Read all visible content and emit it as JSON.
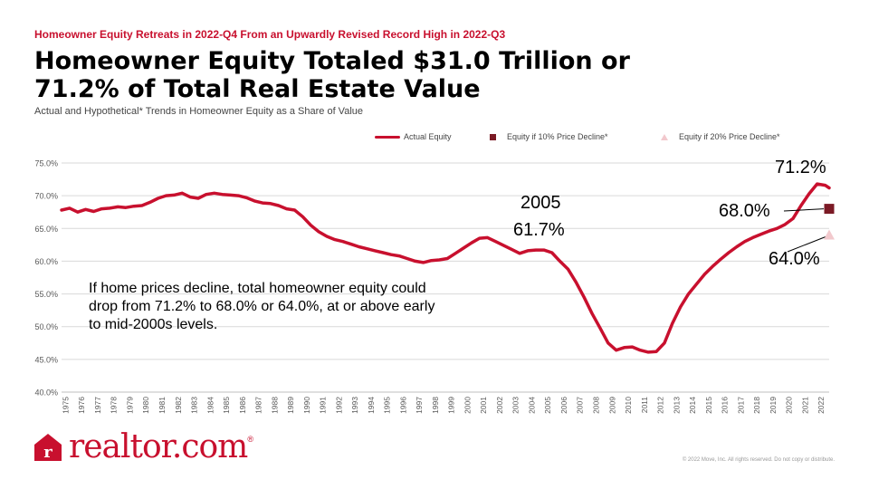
{
  "header": {
    "kicker": "Homeowner Equity  Retreats in 2022-Q4 From  an Upwardly Revised  Record High  in  2022-Q3",
    "title": "Homeowner Equity Totaled $31.0 Trillion or 71.2% of Total Real Estate Value",
    "subtitle": "Actual and Hypothetical* Trends in Homeowner Equity as a Share of Value"
  },
  "legend": {
    "actual": "Actual Equity",
    "decline10": "Equity if 10% Price Decline*",
    "decline20": "Equity if 20% Price Decline*"
  },
  "annotations": {
    "peak_2005_year": "2005",
    "peak_2005_value": "61.7%",
    "latest": "71.2%",
    "decline10": "68.0%",
    "decline20": "64.0%"
  },
  "note": "If home prices decline, total homeowner equity could drop from 71.2% to 68.0% or 64.0%, at or above early to mid-2000s levels.",
  "footer": {
    "logo_text": "realtor.com",
    "logo_mark": "r",
    "logo_registered": "®",
    "copyright": "© 2022 Move, Inc. All rights reserved. Do not copy or distribute."
  },
  "colors": {
    "actual": "#c8102e",
    "decline10": "#7b1a25",
    "decline20": "#f2c9cd",
    "grid": "#d9d9d9",
    "axis_text": "#595959"
  },
  "chart_data": {
    "type": "line",
    "ylim": [
      40,
      75
    ],
    "yticks": [
      "40.0%",
      "45.0%",
      "50.0%",
      "55.0%",
      "60.0%",
      "65.0%",
      "70.0%",
      "75.0%"
    ],
    "xrange": [
      1975,
      2022.75
    ],
    "xticks": [
      "1975",
      "1976",
      "1977",
      "1978",
      "1979",
      "1980",
      "1981",
      "1982",
      "1983",
      "1984",
      "1985",
      "1986",
      "1987",
      "1988",
      "1989",
      "1990",
      "1991",
      "1992",
      "1993",
      "1994",
      "1995",
      "1996",
      "1997",
      "1998",
      "1999",
      "2000",
      "2001",
      "2002",
      "2003",
      "2004",
      "2005",
      "2006",
      "2007",
      "2008",
      "2009",
      "2010",
      "2011",
      "2012",
      "2013",
      "2014",
      "2015",
      "2016",
      "2017",
      "2018",
      "2019",
      "2020",
      "2021",
      "2022"
    ],
    "grid": "horizontal",
    "legend_position": "top-right",
    "series": [
      {
        "name": "Actual Equity",
        "x": [
          1975,
          1975.5,
          1976,
          1976.5,
          1977,
          1977.5,
          1978,
          1978.5,
          1979,
          1979.5,
          1980,
          1980.5,
          1981,
          1981.5,
          1982,
          1982.5,
          1983,
          1983.5,
          1984,
          1984.5,
          1985,
          1985.5,
          1986,
          1986.5,
          1987,
          1987.5,
          1988,
          1988.5,
          1989,
          1989.5,
          1990,
          1990.5,
          1991,
          1991.5,
          1992,
          1992.5,
          1993,
          1993.5,
          1994,
          1994.5,
          1995,
          1995.5,
          1996,
          1996.5,
          1997,
          1997.5,
          1998,
          1998.5,
          1999,
          1999.5,
          2000,
          2000.5,
          2001,
          2001.5,
          2002,
          2002.5,
          2003,
          2003.5,
          2004,
          2004.5,
          2005,
          2005.5,
          2006,
          2006.5,
          2007,
          2007.5,
          2008,
          2008.5,
          2009,
          2009.5,
          2010,
          2010.5,
          2011,
          2011.5,
          2012,
          2012.5,
          2013,
          2013.5,
          2014,
          2014.5,
          2015,
          2015.5,
          2016,
          2016.5,
          2017,
          2017.5,
          2018,
          2018.5,
          2019,
          2019.5,
          2020,
          2020.5,
          2021,
          2021.5,
          2022,
          2022.5,
          2022.75
        ],
        "y": [
          67.8,
          68.1,
          67.5,
          67.9,
          67.6,
          68.0,
          68.1,
          68.3,
          68.2,
          68.4,
          68.5,
          69.0,
          69.6,
          70.0,
          70.1,
          70.4,
          69.8,
          69.6,
          70.2,
          70.4,
          70.2,
          70.1,
          70.0,
          69.7,
          69.2,
          68.9,
          68.8,
          68.5,
          68.0,
          67.8,
          66.8,
          65.5,
          64.5,
          63.8,
          63.3,
          63.0,
          62.6,
          62.2,
          61.9,
          61.6,
          61.3,
          61.0,
          60.8,
          60.4,
          60.0,
          59.8,
          60.1,
          60.2,
          60.4,
          61.2,
          62.0,
          62.8,
          63.5,
          63.6,
          63.0,
          62.4,
          61.8,
          61.2,
          61.6,
          61.7,
          61.7,
          61.3,
          60.0,
          58.8,
          56.8,
          54.5,
          52.0,
          49.8,
          47.5,
          46.4,
          46.8,
          46.9,
          46.4,
          46.1,
          46.2,
          47.5,
          50.5,
          53.0,
          55.0,
          56.5,
          58.0,
          59.2,
          60.3,
          61.3,
          62.2,
          63.0,
          63.6,
          64.1,
          64.6,
          65.0,
          65.6,
          66.5,
          68.5,
          70.3,
          71.8,
          71.6,
          71.2
        ]
      },
      {
        "name": "Equity if 10% Price Decline*",
        "x": [
          2022.75
        ],
        "y": [
          68.0
        ]
      },
      {
        "name": "Equity if 20% Price Decline*",
        "x": [
          2022.75
        ],
        "y": [
          64.0
        ]
      }
    ]
  }
}
